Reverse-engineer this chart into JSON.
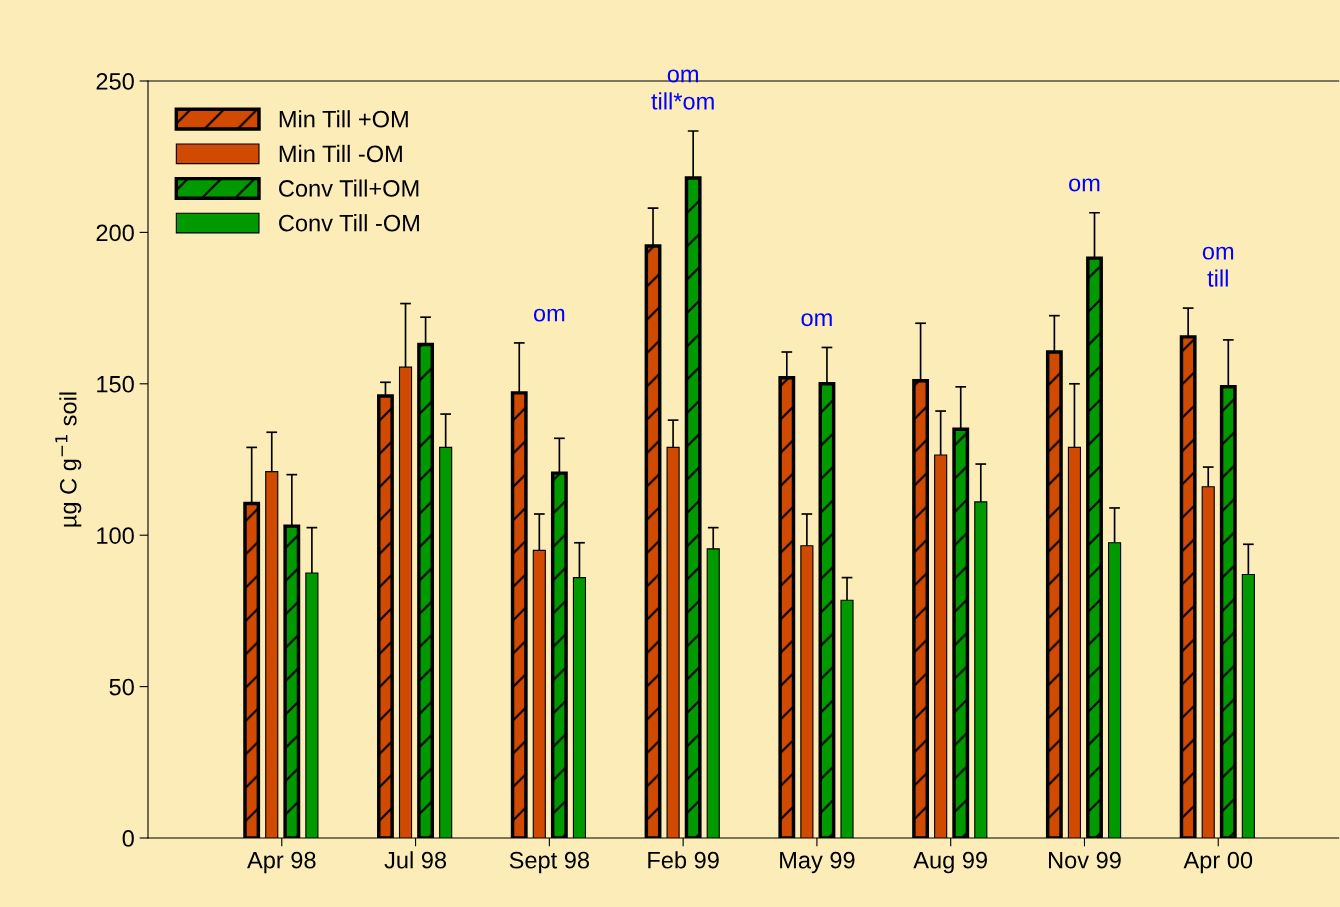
{
  "chart_data": {
    "type": "bar",
    "ylabel": "µg C g$^{−1}$ soil",
    "categories": [
      "Apr 98",
      "Jul 98",
      "Sept 98",
      "Feb 99",
      "May 99",
      "Aug 99",
      "Nov 99",
      "Apr 00"
    ],
    "series": [
      {
        "name": "Min Till +OM",
        "color": "#d04a02",
        "values": [
          110.5,
          146,
          147,
          195.5,
          152,
          151,
          160.5,
          165.5
        ],
        "errors": [
          18.5,
          4.5,
          16.5,
          12.5,
          8.5,
          19,
          12,
          9.5
        ]
      },
      {
        "name": "Min Till -OM",
        "color": "#d04a02",
        "values": [
          121,
          155.5,
          95,
          129,
          96.5,
          126.5,
          129,
          116
        ],
        "errors": [
          13,
          21,
          12,
          9,
          10.5,
          14.5,
          21,
          6.5
        ]
      },
      {
        "name": "Conv Till+OM",
        "color": "#009900",
        "values": [
          103,
          163,
          120.5,
          218,
          150,
          135,
          191.5,
          149
        ],
        "errors": [
          17,
          9,
          11.5,
          15.5,
          12,
          14,
          15,
          15.5
        ]
      },
      {
        "name": "Conv Till -OM",
        "color": "#009900",
        "values": [
          87.5,
          129,
          86,
          95.5,
          78.5,
          111,
          97.5,
          87
        ],
        "errors": [
          15,
          11,
          11.5,
          7,
          7.5,
          12.5,
          11.5,
          10
        ]
      }
    ],
    "ylim": [
      0,
      250
    ],
    "yticks": [
      0,
      50,
      100,
      150,
      200,
      250
    ],
    "grid": false,
    "legend": "top left",
    "annotations": [
      "om",
      "om\ntill*om",
      "om",
      "om",
      "om\ntill"
    ]
  }
}
